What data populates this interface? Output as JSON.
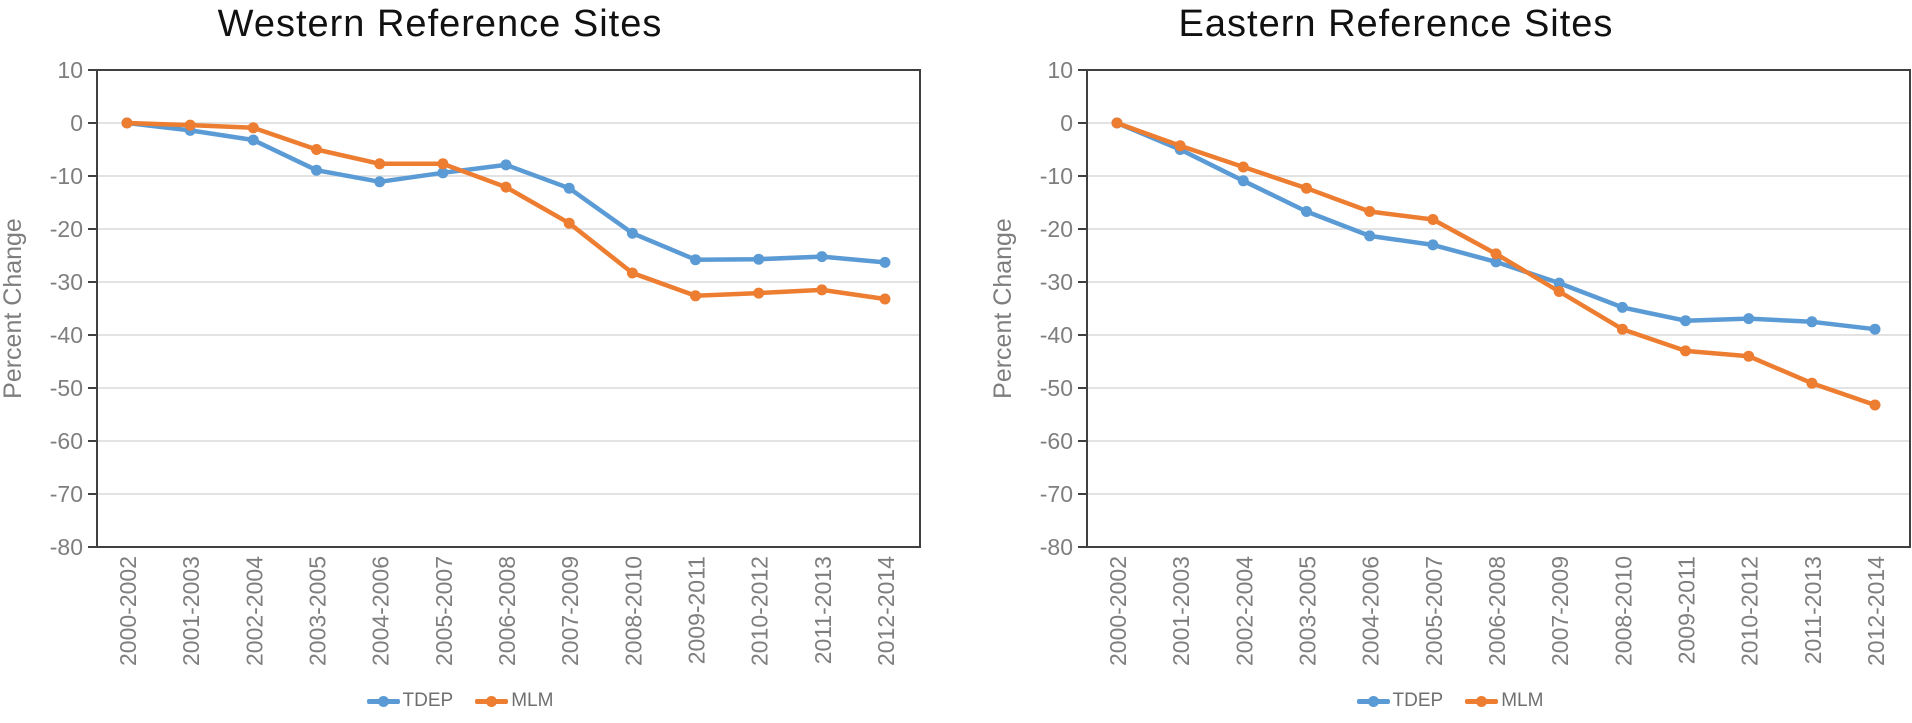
{
  "styles": {
    "series_blue": "#5B9BD5",
    "series_orange": "#ED7D31",
    "axis_line_color": "#404040",
    "gridline_color": "#DADADA",
    "tick_text_color": "#7E7E7E",
    "legend_text_color": "#6F6F6F",
    "title_text_color": "#111111",
    "background": "#FFFFFF"
  },
  "chart_data": [
    {
      "type": "line",
      "title": "Western Reference Sites",
      "xlabel": "",
      "ylabel": "Percent Change",
      "ylim": [
        -80,
        10
      ],
      "ytick_step": 10,
      "ytick_labels": [
        "10",
        "0",
        "-10",
        "-20",
        "-30",
        "-40",
        "-50",
        "-60",
        "-70",
        "-80"
      ],
      "grid": "horizontal",
      "legend_position": "bottom",
      "categories": [
        "2000-2002",
        "2001-2003",
        "2002-2004",
        "2003-2005",
        "2004-2006",
        "2005-2007",
        "2006-2008",
        "2007-2009",
        "2008-2010",
        "2009-2011",
        "2010-2012",
        "2011-2013",
        "2012-2014"
      ],
      "series": [
        {
          "name": "TDEP",
          "color": "#5B9BD5",
          "values": [
            0,
            -1.4,
            -3.2,
            -8.9,
            -11.1,
            -9.4,
            -7.9,
            -12.3,
            -20.8,
            -25.8,
            -25.7,
            -25.2,
            -26.3
          ]
        },
        {
          "name": "MLM",
          "color": "#ED7D31",
          "values": [
            0,
            -0.4,
            -0.9,
            -5.0,
            -7.7,
            -7.7,
            -12.1,
            -18.9,
            -28.3,
            -32.6,
            -32.1,
            -31.5,
            -33.2
          ]
        }
      ]
    },
    {
      "type": "line",
      "title": "Eastern Reference Sites",
      "xlabel": "",
      "ylabel": "Percent Change",
      "ylim": [
        -80,
        10
      ],
      "ytick_step": 10,
      "ytick_labels": [
        "10",
        "0",
        "-10",
        "-20",
        "-30",
        "-40",
        "-50",
        "-60",
        "-70",
        "-80"
      ],
      "grid": "horizontal",
      "legend_position": "bottom",
      "categories": [
        "2000-2002",
        "2001-2003",
        "2002-2004",
        "2003-2005",
        "2004-2006",
        "2005-2007",
        "2006-2008",
        "2007-2009",
        "2008-2010",
        "2009-2011",
        "2010-2012",
        "2011-2013",
        "2012-2014"
      ],
      "series": [
        {
          "name": "TDEP",
          "color": "#5B9BD5",
          "values": [
            0,
            -5.0,
            -10.9,
            -16.7,
            -21.3,
            -23.0,
            -26.2,
            -30.2,
            -34.8,
            -37.3,
            -36.9,
            -37.5,
            -38.9
          ]
        },
        {
          "name": "MLM",
          "color": "#ED7D31",
          "values": [
            0,
            -4.3,
            -8.3,
            -12.3,
            -16.7,
            -18.2,
            -24.7,
            -31.8,
            -38.9,
            -43.0,
            -44.0,
            -49.1,
            -53.2
          ]
        }
      ]
    }
  ]
}
